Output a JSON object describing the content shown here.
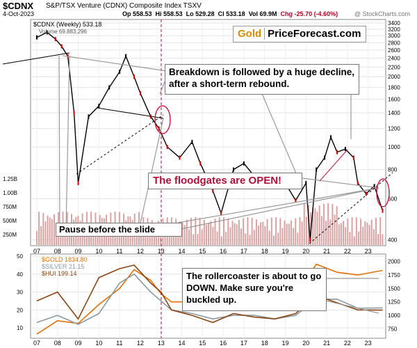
{
  "header": {
    "symbol": "$CDNX",
    "name": "S&P/TSX Venture (CDNX) Composite Index  TSXV",
    "date": "4-Oct-2023",
    "quote_open": "Op 558.53",
    "quote_high": "Hi 558.53",
    "quote_low": "Lo 529.28",
    "quote_close": "Cl 533.18",
    "quote_vol": "Vol 69.9M",
    "quote_chg": "Chg -25.70 (-4.60%)",
    "watermark": "@ StockCharts.com"
  },
  "logo": {
    "gold": "Gold",
    "rest": "PriceForecast.com"
  },
  "callouts": {
    "breakdown": "Breakdown is followed by a huge decline, after a short-term rebound.",
    "floodgates": "The floodgates are OPEN!",
    "pause": "Pause before the slide",
    "rollercoaster": "The rollercoaster is about to go DOWN. Make sure you're buckled up."
  },
  "colors": {
    "candle_up": "#000000",
    "candle_down": "#cc0000",
    "volume": "#d9a3a3",
    "gold": "#e07000",
    "silver": "#8a9aa0",
    "hui": "#8b4513",
    "annotation_line": "#888888",
    "highlight": "#cc0033"
  },
  "chart_data": [
    {
      "type": "line",
      "legend": [
        "$CDNX (Weekly) 533.18",
        "Volume 69,883,296"
      ],
      "y_right_ticks": [
        "3400",
        "3200",
        "3000",
        "2800",
        "2600",
        "2400",
        "2200",
        "2000",
        "1800",
        "1600",
        "1400",
        "1200",
        "1000",
        "800",
        "600",
        "400"
      ],
      "y_left_ticks": [
        "1.25B",
        "1.00B",
        "750M",
        "500M",
        "250M"
      ],
      "x_ticks": [
        "07",
        "08",
        "09",
        "10",
        "11",
        "12",
        "13",
        "14",
        "15",
        "16",
        "17",
        "18",
        "19",
        "20",
        "21",
        "22",
        "23"
      ],
      "x": [
        2007.0,
        2007.5,
        2007.9,
        2008.2,
        2008.5,
        2008.8,
        2009.0,
        2009.5,
        2010.0,
        2010.5,
        2011.0,
        2011.3,
        2011.7,
        2012.0,
        2012.5,
        2012.9,
        2013.3,
        2013.9,
        2014.5,
        2014.9,
        2015.5,
        2015.9,
        2016.5,
        2017.0,
        2017.5,
        2018.0,
        2018.5,
        2019.0,
        2019.5,
        2020.0,
        2020.2,
        2020.5,
        2020.9,
        2021.2,
        2021.5,
        2021.9,
        2022.3,
        2022.5,
        2022.9,
        2023.3,
        2023.7
      ],
      "series": [
        {
          "name": "$CDNX (Weekly) 533.18",
          "values": [
            2950,
            3100,
            2900,
            2700,
            2450,
            1400,
            700,
            1350,
            1500,
            1800,
            2100,
            2450,
            2000,
            1700,
            1350,
            1200,
            1000,
            900,
            1050,
            850,
            650,
            520,
            800,
            850,
            750,
            700,
            680,
            700,
            590,
            700,
            400,
            800,
            900,
            1100,
            950,
            980,
            900,
            700,
            630,
            680,
            533
          ]
        }
      ]
    },
    {
      "type": "line",
      "x_ticks": [
        "07",
        "08",
        "09",
        "10",
        "11",
        "12",
        "13",
        "14",
        "15",
        "16",
        "17",
        "18",
        "19",
        "20",
        "21",
        "22",
        "23"
      ],
      "y_left_ticks": [
        "50",
        "40",
        "30",
        "20",
        "10"
      ],
      "y_right_ticks": [
        "2000",
        "1750",
        "1500",
        "1250",
        "1000",
        "750"
      ],
      "x": [
        2007.0,
        2008.0,
        2009.0,
        2010.0,
        2011.0,
        2011.7,
        2012.5,
        2013.0,
        2013.5,
        2014.5,
        2015.5,
        2016.5,
        2017.5,
        2018.5,
        2019.5,
        2020.5,
        2021.5,
        2022.5,
        2023.7
      ],
      "series": [
        {
          "name": "$GOLD 1834.80",
          "axis": "right",
          "values": [
            650,
            900,
            850,
            1200,
            1500,
            1850,
            1650,
            1400,
            1250,
            1250,
            1100,
            1300,
            1280,
            1220,
            1400,
            1950,
            1800,
            1750,
            1834.8
          ]
        },
        {
          "name": "$SILVER 21.15",
          "axis": "left",
          "values": [
            13,
            17,
            12,
            18,
            35,
            40,
            30,
            25,
            20,
            18,
            15,
            17,
            17,
            15,
            17,
            26,
            26,
            21,
            21.15
          ]
        },
        {
          "name": "$HUI 199.14",
          "axis": "left",
          "values": [
            25,
            30,
            15,
            38,
            43,
            45,
            35,
            30,
            20,
            17,
            13,
            18,
            16,
            15,
            18,
            28,
            24,
            20,
            19.9
          ]
        }
      ]
    }
  ]
}
